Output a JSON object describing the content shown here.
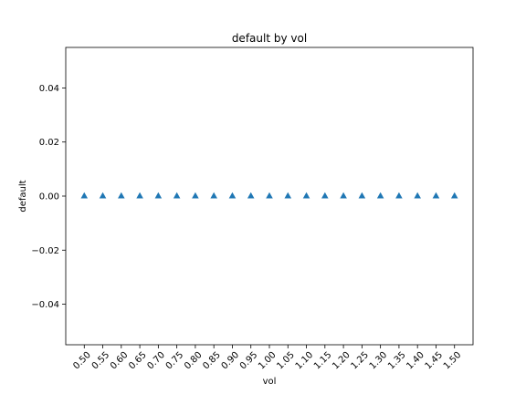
{
  "chart_data": {
    "type": "scatter",
    "title": "default by vol",
    "xlabel": "vol",
    "ylabel": "default",
    "x": [
      0.5,
      0.55,
      0.6,
      0.65,
      0.7,
      0.75,
      0.8,
      0.85,
      0.9,
      0.95,
      1.0,
      1.05,
      1.1,
      1.15,
      1.2,
      1.25,
      1.3,
      1.35,
      1.4,
      1.45,
      1.5
    ],
    "x_tick_labels": [
      "0.50",
      "0.55",
      "0.60",
      "0.65",
      "0.70",
      "0.75",
      "0.80",
      "0.85",
      "0.90",
      "0.95",
      "1.00",
      "1.05",
      "1.10",
      "1.15",
      "1.20",
      "1.25",
      "1.30",
      "1.35",
      "1.40",
      "1.45",
      "1.50"
    ],
    "x_tick_rotation_deg": 45,
    "series": [
      {
        "marker": "triangle-up",
        "color": "#1f77b4",
        "values": [
          0,
          0,
          0,
          0,
          0,
          0,
          0,
          0,
          0,
          0,
          0,
          0,
          0,
          0,
          0,
          0,
          0,
          0,
          0,
          0,
          0
        ]
      }
    ],
    "xlim": [
      0.45,
      1.55
    ],
    "ylim": [
      -0.055,
      0.055
    ],
    "y_ticks": [
      -0.04,
      -0.02,
      0.0,
      0.02,
      0.04
    ],
    "y_tick_labels": [
      "−0.04",
      "−0.02",
      "0.00",
      "0.02",
      "0.04"
    ],
    "grid": false,
    "legend": "none"
  }
}
